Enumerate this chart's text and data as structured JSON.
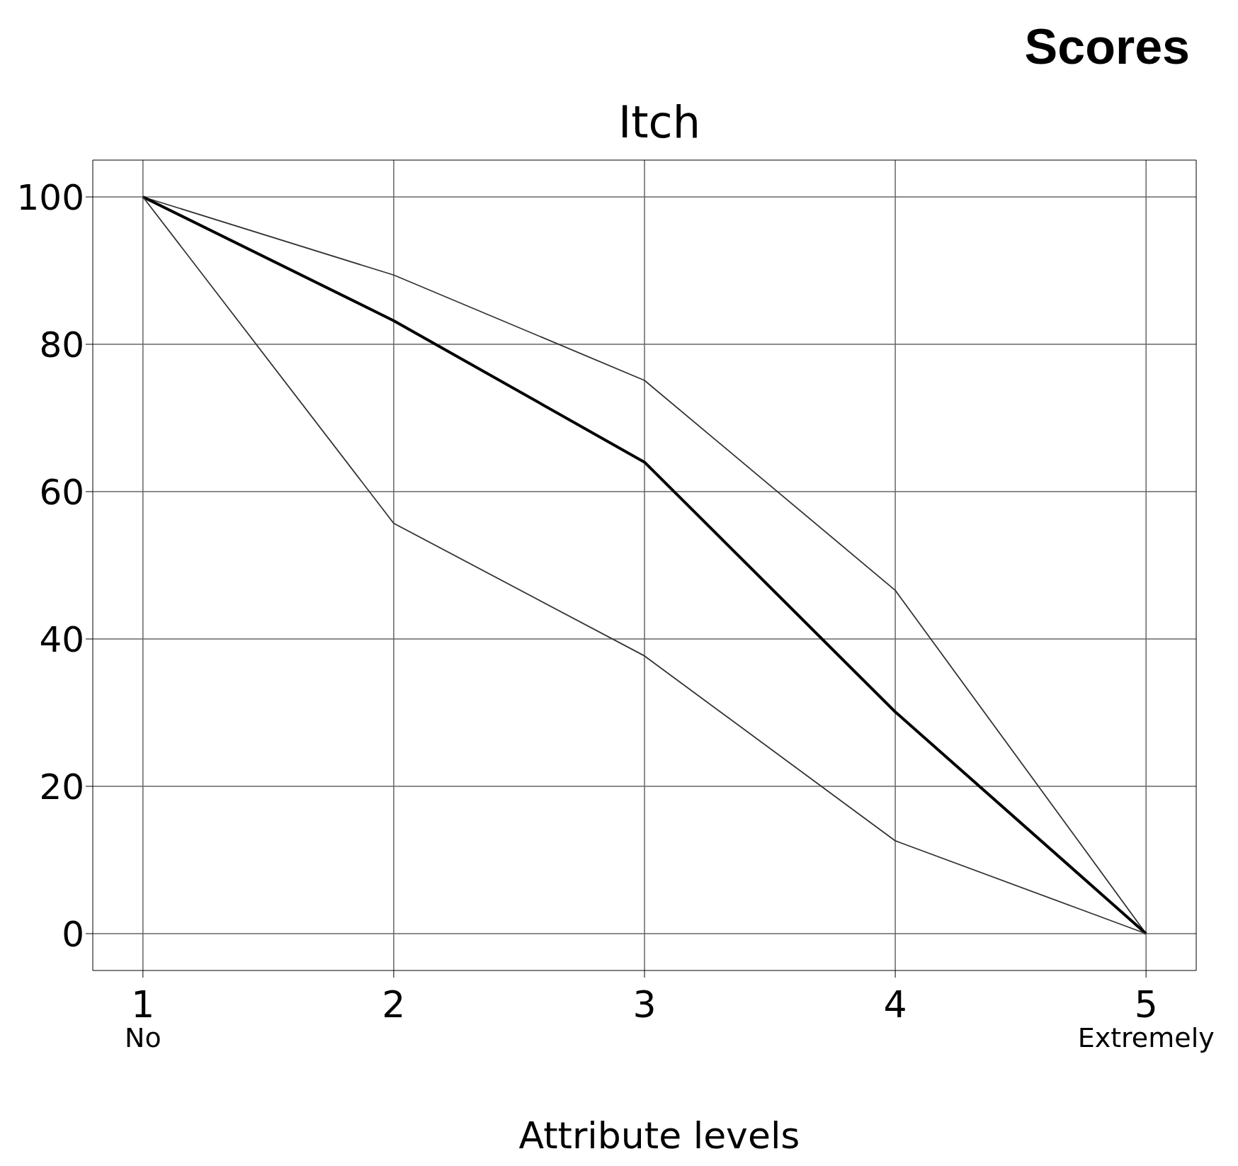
{
  "chart_data": {
    "type": "line",
    "title": "Itch",
    "subtitle": "Scores",
    "xlabel": "Attribute levels",
    "x": [
      1,
      2,
      3,
      4,
      5
    ],
    "series": [
      {
        "color": "#333333",
        "values": [
          100,
          89.4,
          75.1,
          46.6,
          0
        ]
      },
      {
        "color": "#000000",
        "values": [
          100,
          83.2,
          64,
          30.1,
          0
        ]
      },
      {
        "color": "#333333",
        "values": [
          100,
          55.7,
          37.7,
          12.6,
          0
        ]
      }
    ],
    "xlim": [
      0.8,
      5.2
    ],
    "xticks": [
      {
        "value": 1,
        "label": "1\nNo"
      },
      2,
      3,
      4,
      {
        "value": 5,
        "label": "5\nExtremely"
      }
    ],
    "ylim": [
      -5,
      105
    ],
    "yticks": [
      0,
      20,
      40,
      60,
      80,
      100
    ],
    "grid": true,
    "marker": "none",
    "line_style": "solid"
  }
}
